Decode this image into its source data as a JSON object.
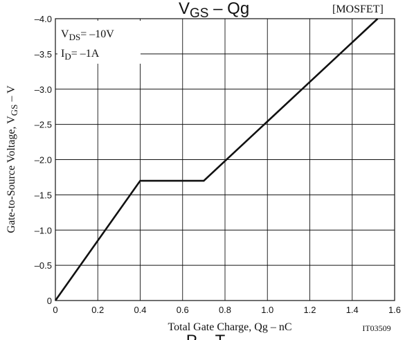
{
  "chart_data": {
    "type": "line",
    "title": {
      "main": "V",
      "sub": "GS",
      "rest": " – Qg"
    },
    "tag": "[MOSFET]",
    "xlabel": "Total Gate Charge, Qg  –  nC",
    "ylabel": {
      "pre": "Gate-to-Source Voltage, V",
      "sub": "GS",
      "post": "  –  V"
    },
    "figure_code": "IT03509",
    "conditions": [
      {
        "main": "V",
        "sub": "DS",
        "rest": "= –10V"
      },
      {
        "main": "I",
        "sub": "D",
        "rest": "= –1A"
      }
    ],
    "x_ticks": [
      "0",
      "0.2",
      "0.4",
      "0.6",
      "0.8",
      "1.0",
      "1.2",
      "1.4",
      "1.6"
    ],
    "y_ticks": [
      "0",
      "–0.5",
      "–1.0",
      "–1.5",
      "–2.0",
      "–2.5",
      "–3.0",
      "–3.5",
      "–4.0"
    ],
    "xlim": [
      0,
      1.6
    ],
    "ylim": [
      0,
      -4.0
    ],
    "grid": true,
    "series": [
      {
        "x": [
          0,
          0.4,
          0.7,
          1.52
        ],
        "y": [
          0,
          -1.7,
          -1.7,
          -4.0
        ]
      }
    ],
    "bottom_partial_text": "P – T"
  }
}
